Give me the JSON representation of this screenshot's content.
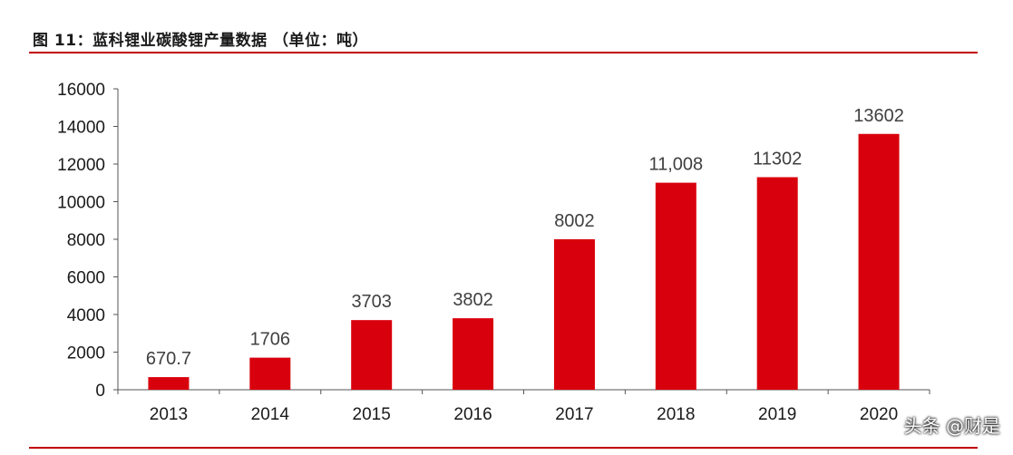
{
  "figure": {
    "title": "图 11：蓝科锂业碳酸锂产量数据 （单位：吨）"
  },
  "watermark": "头条 @财是",
  "colors": {
    "bar": "#d9000d",
    "rule": "#c00000",
    "axis": "#555555"
  },
  "chart_data": {
    "type": "bar",
    "categories": [
      "2013",
      "2014",
      "2015",
      "2016",
      "2017",
      "2018",
      "2019",
      "2020"
    ],
    "values": [
      670.7,
      1706,
      3703,
      3802,
      8002,
      11008,
      11302,
      13602
    ],
    "data_labels": [
      "670.7",
      "1706",
      "3703",
      "3802",
      "8002",
      "11,008",
      "11302",
      "13602"
    ],
    "y_ticks": [
      0,
      2000,
      4000,
      6000,
      8000,
      10000,
      12000,
      14000,
      16000
    ],
    "ylim": [
      0,
      16000
    ],
    "grid": false,
    "legend": "none"
  }
}
